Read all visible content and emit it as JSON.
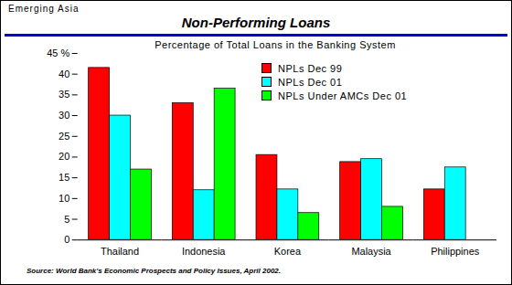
{
  "chart_data": {
    "type": "bar",
    "header": "Emerging Asia",
    "title": "Non-Performing Loans",
    "subtitle": "Percentage of Total Loans in the Banking System",
    "source": "Source: World Bank's Economic Prospects and Policy Issues, April 2002.",
    "categories": [
      "Thailand",
      "Indonesia",
      "Korea",
      "Malaysia",
      "Philippines"
    ],
    "series": [
      {
        "name": "NPLs Dec 99",
        "color": "#ff0000",
        "values": [
          41.5,
          33,
          20.5,
          18.8,
          12.2
        ]
      },
      {
        "name": "NPLs Dec 01",
        "color": "#00ffff",
        "values": [
          30,
          12,
          12.2,
          19.5,
          17.5
        ]
      },
      {
        "name": "NPLs Under AMCs Dec 01",
        "color": "#00ff00",
        "values": [
          17,
          36.5,
          6.5,
          8,
          null
        ]
      }
    ],
    "ylim": [
      0,
      45
    ],
    "yticks": [
      0,
      5,
      10,
      15,
      20,
      25,
      30,
      35,
      40,
      {
        "value": 45,
        "label": "45 %"
      }
    ],
    "grid": false,
    "legend": "top-right"
  }
}
